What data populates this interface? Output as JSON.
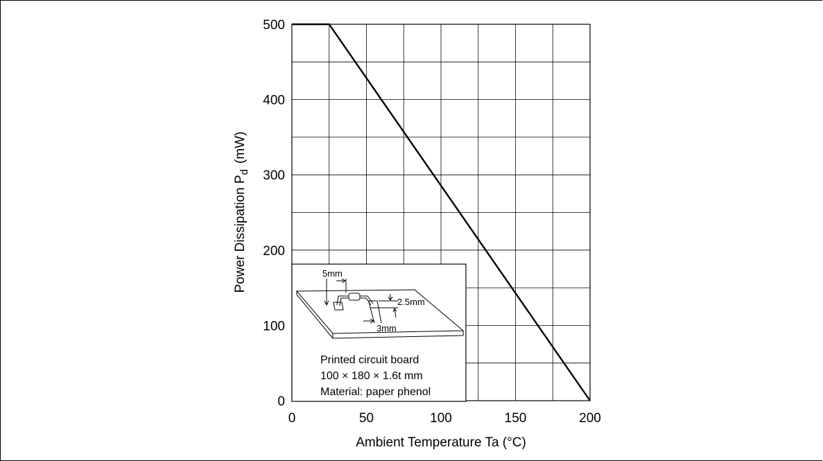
{
  "chart_data": {
    "type": "line",
    "title": "",
    "xlabel": "Ambient Temperature Ta (°C)",
    "ylabel_main": "Power Dissipation P",
    "ylabel_sub": "d",
    "ylabel_unit": "(mW)",
    "xlim": [
      0,
      200
    ],
    "ylim": [
      0,
      500
    ],
    "x_ticks": [
      0,
      50,
      100,
      150,
      200
    ],
    "y_ticks": [
      0,
      100,
      200,
      300,
      400,
      500
    ],
    "x_minor_grid_step": 25,
    "y_minor_grid_step": 50,
    "grid": true,
    "series": [
      {
        "x": [
          0,
          25,
          200
        ],
        "y": [
          500,
          500,
          0
        ]
      }
    ],
    "inset": {
      "dim_5mm": "5mm",
      "dim_2_5mm": "2.5mm",
      "dim_3mm": "3mm",
      "lines": [
        "Printed circuit board",
        "100 × 180 × 1.6t mm",
        "Material: paper phenol"
      ]
    }
  }
}
